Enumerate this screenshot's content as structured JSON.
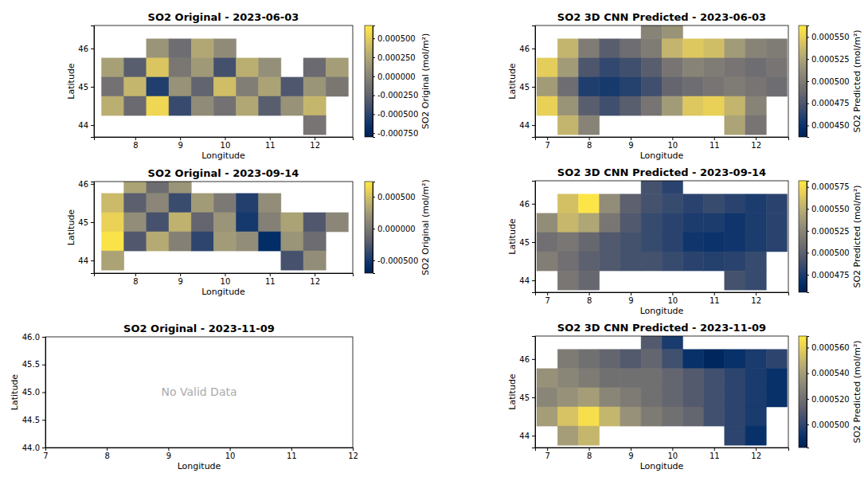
{
  "chart_data": [
    {
      "type": "heatmap",
      "title": "SO2 Original - 2023-06-03",
      "x_label": "Longitude",
      "y_label": "Latitude",
      "xlim": [
        7.08,
        12.85
      ],
      "ylim": [
        43.69,
        46.6
      ],
      "xticks": [
        8,
        9,
        10,
        11,
        12
      ],
      "yticks": [
        44,
        45,
        46
      ],
      "color": "cividis",
      "x": [
        7.0,
        7.5,
        8.0,
        8.5,
        9.0,
        9.5,
        10.0,
        10.5,
        11.0,
        11.5,
        12.0,
        12.5
      ],
      "y": [
        46.5,
        46.0,
        45.5,
        45.0,
        44.5,
        44.0
      ],
      "values": [
        [
          null,
          null,
          null,
          null,
          null,
          null,
          null,
          null,
          null,
          null,
          null,
          null
        ],
        [
          null,
          null,
          null,
          0.00012,
          -0.00018,
          0.00025,
          5e-05,
          null,
          null,
          null,
          null,
          null
        ],
        [
          null,
          0.0002,
          -0.0003,
          0.00045,
          -0.0001,
          0.00015,
          -0.0004,
          0.0003,
          8e-05,
          null,
          -0.0002,
          0.00018
        ],
        [
          null,
          -0.00015,
          0.00035,
          -0.00055,
          0.0001,
          -0.00025,
          0.0004,
          -5e-05,
          0.00022,
          -0.00035,
          0.00012,
          -0.0001
        ],
        [
          null,
          0.0003,
          -0.0002,
          0.00055,
          -0.00045,
          5e-05,
          -0.00015,
          0.00025,
          -0.0003,
          0.0001,
          0.00035,
          null
        ],
        [
          null,
          null,
          null,
          null,
          null,
          null,
          null,
          null,
          null,
          null,
          -0.00012,
          null
        ]
      ],
      "colorbar": {
        "label": "SO2 Original (mol/m²)",
        "range": [
          -0.0008,
          0.00067
        ],
        "ticks": [
          {
            "value": -0.00075,
            "label": "-0.000750"
          },
          {
            "value": -0.0005,
            "label": "-0.000500"
          },
          {
            "value": -0.00025,
            "label": "-0.000250"
          },
          {
            "value": 0,
            "label": "0.000000"
          },
          {
            "value": 0.00025,
            "label": "0.000250"
          },
          {
            "value": 0.0005,
            "label": "0.000500"
          }
        ]
      }
    },
    {
      "type": "heatmap",
      "title": "SO2 3D CNN Predicted - 2023-06-03",
      "x_label": "Longitude",
      "y_label": "Latitude",
      "xlim": [
        6.71,
        12.78
      ],
      "ylim": [
        43.69,
        46.6
      ],
      "xticks": [
        7,
        8,
        9,
        10,
        11,
        12
      ],
      "yticks": [
        44,
        45,
        46
      ],
      "color": "cividis",
      "x": [
        7.0,
        7.5,
        8.0,
        8.5,
        9.0,
        9.5,
        10.0,
        10.5,
        11.0,
        11.5,
        12.0,
        12.5
      ],
      "y": [
        46.5,
        46.0,
        45.5,
        45.0,
        44.5,
        44.0
      ],
      "values": [
        [
          null,
          null,
          null,
          null,
          null,
          0.000505,
          0.000515,
          null,
          null,
          null,
          null,
          null
        ],
        [
          null,
          0.000535,
          0.0005,
          0.00048,
          0.00049,
          0.0005,
          0.000535,
          0.000545,
          0.00054,
          0.00052,
          0.000505,
          0.0005
        ],
        [
          0.000548,
          0.00052,
          0.000475,
          0.000465,
          0.00047,
          0.00048,
          0.000495,
          0.000505,
          0.0005,
          0.000495,
          0.00049,
          0.000495
        ],
        [
          0.00052,
          0.00049,
          0.000458,
          0.000455,
          0.00046,
          0.00047,
          0.000485,
          0.00049,
          0.000495,
          0.0005,
          0.000495,
          0.00049
        ],
        [
          0.00055,
          0.000515,
          0.00048,
          0.00047,
          0.00048,
          0.000495,
          0.00052,
          0.000545,
          0.00055,
          0.000535,
          0.000505,
          null
        ],
        [
          null,
          0.000535,
          0.000505,
          null,
          null,
          null,
          null,
          null,
          null,
          0.000525,
          0.000495,
          null
        ]
      ],
      "colorbar": {
        "label": "SO2 Predicted (mol/m²)",
        "range": [
          0.000437,
          0.000563
        ],
        "ticks": [
          {
            "value": 0.00045,
            "label": "0.000450"
          },
          {
            "value": 0.000475,
            "label": "0.000475"
          },
          {
            "value": 0.0005,
            "label": "0.000500"
          },
          {
            "value": 0.000525,
            "label": "0.000525"
          },
          {
            "value": 0.00055,
            "label": "0.000550"
          }
        ]
      }
    },
    {
      "type": "heatmap",
      "title": "SO2 Original - 2023-09-14",
      "x_label": "Longitude",
      "y_label": "Latitude",
      "xlim": [
        7.08,
        12.85
      ],
      "ylim": [
        43.67,
        46.06
      ],
      "xticks": [
        8,
        9,
        10,
        11,
        12
      ],
      "yticks": [
        44,
        45,
        46
      ],
      "color": "cividis",
      "x": [
        7.0,
        7.5,
        8.0,
        8.5,
        9.0,
        9.5,
        10.0,
        10.5,
        11.0,
        11.5,
        12.0,
        12.5
      ],
      "y": [
        46.5,
        46.0,
        45.5,
        45.0,
        44.5,
        44.0
      ],
      "values": [
        [
          null,
          null,
          null,
          null,
          null,
          null,
          null,
          null,
          null,
          null,
          null,
          null
        ],
        [
          null,
          null,
          0.0003,
          -0.0001,
          0.0002,
          null,
          null,
          null,
          null,
          null,
          null,
          null
        ],
        [
          null,
          0.00045,
          -0.0002,
          0.0001,
          -0.00035,
          0.00025,
          0.0,
          -0.00045,
          0.00015,
          null,
          null,
          null
        ],
        [
          null,
          0.0006,
          0.00015,
          -0.0003,
          0.0004,
          -0.00015,
          0.0002,
          -0.0005,
          5e-05,
          0.0003,
          -0.00025,
          0.0001
        ],
        [
          null,
          0.0007,
          -0.00025,
          0.00035,
          5e-05,
          -0.0004,
          0.00025,
          0.00015,
          -0.0006,
          0.0002,
          -0.0001,
          null
        ],
        [
          null,
          0.0003,
          null,
          null,
          null,
          null,
          null,
          null,
          null,
          -0.0003,
          0.00015,
          null
        ]
      ],
      "colorbar": {
        "label": "SO2 Original (mol/m²)",
        "range": [
          -0.0007,
          0.00074
        ],
        "ticks": [
          {
            "value": -0.0005,
            "label": "-0.000500"
          },
          {
            "value": 0,
            "label": "0.000000"
          },
          {
            "value": 0.0005,
            "label": "0.000500"
          }
        ]
      }
    },
    {
      "type": "heatmap",
      "title": "SO2 3D CNN Predicted - 2023-09-14",
      "x_label": "Longitude",
      "y_label": "Latitude",
      "xlim": [
        6.71,
        12.78
      ],
      "ylim": [
        43.69,
        46.6
      ],
      "xticks": [
        7,
        8,
        9,
        10,
        11,
        12
      ],
      "yticks": [
        44,
        45,
        46
      ],
      "color": "cividis",
      "x": [
        7.0,
        7.5,
        8.0,
        8.5,
        9.0,
        9.5,
        10.0,
        10.5,
        11.0,
        11.5,
        12.0,
        12.5
      ],
      "y": [
        46.5,
        46.0,
        45.5,
        45.0,
        44.5,
        44.0
      ],
      "values": [
        [
          null,
          null,
          null,
          null,
          null,
          0.00049,
          0.00048,
          null,
          null,
          null,
          null,
          null
        ],
        [
          null,
          0.00056,
          0.00058,
          0.00053,
          0.0005,
          0.00049,
          0.000485,
          0.00048,
          0.000485,
          0.00048,
          0.000475,
          0.00048
        ],
        [
          0.00053,
          0.000555,
          0.000545,
          0.000515,
          0.000495,
          0.000485,
          0.00048,
          0.000475,
          0.000475,
          0.00047,
          0.000475,
          0.00048
        ],
        [
          0.00051,
          0.000515,
          0.000505,
          0.000495,
          0.00049,
          0.000485,
          0.00048,
          0.00047,
          0.000468,
          0.00047,
          0.000475,
          0.00048
        ],
        [
          0.00052,
          0.00051,
          0.0005,
          0.000495,
          0.00049,
          0.00049,
          0.000485,
          0.00048,
          0.000478,
          0.00048,
          0.000485,
          null
        ],
        [
          null,
          0.000515,
          0.000505,
          null,
          null,
          null,
          null,
          null,
          null,
          0.00049,
          0.000485,
          null
        ]
      ],
      "colorbar": {
        "label": "SO2 Predicted (mol/m²)",
        "range": [
          0.000455,
          0.000582
        ],
        "ticks": [
          {
            "value": 0.000475,
            "label": "0.000475"
          },
          {
            "value": 0.0005,
            "label": "0.000500"
          },
          {
            "value": 0.000525,
            "label": "0.000525"
          },
          {
            "value": 0.00055,
            "label": "0.000550"
          },
          {
            "value": 0.000575,
            "label": "0.000575"
          }
        ]
      }
    },
    {
      "type": "heatmap",
      "title": "SO2 Original - 2023-11-09",
      "x_label": "Longitude",
      "y_label": "Latitude",
      "xlim": [
        7,
        12
      ],
      "ylim": [
        44,
        46
      ],
      "xticks": [
        7,
        8,
        9,
        10,
        11,
        12
      ],
      "yticks": [
        {
          "value": 44,
          "label": "44.0"
        },
        44.5,
        {
          "value": 45,
          "label": "45.0"
        },
        45.5,
        {
          "value": 46,
          "label": "46.0"
        }
      ],
      "annotation": "No Valid Data"
    },
    {
      "type": "heatmap",
      "title": "SO2 3D CNN Predicted - 2023-11-09",
      "x_label": "Longitude",
      "y_label": "Latitude",
      "xlim": [
        6.71,
        12.78
      ],
      "ylim": [
        43.69,
        46.6
      ],
      "xticks": [
        7,
        8,
        9,
        10,
        11,
        12
      ],
      "yticks": [
        44,
        45,
        46
      ],
      "color": "cividis",
      "x": [
        7.0,
        7.5,
        8.0,
        8.5,
        9.0,
        9.5,
        10.0,
        10.5,
        11.0,
        11.5,
        12.0,
        12.5
      ],
      "y": [
        46.5,
        46.0,
        45.5,
        45.0,
        44.5,
        44.0
      ],
      "values": [
        [
          null,
          null,
          null,
          null,
          null,
          0.00051,
          0.000495,
          null,
          null,
          null,
          null,
          null
        ],
        [
          null,
          0.000525,
          0.00052,
          0.000515,
          0.00051,
          0.000515,
          0.000505,
          0.00049,
          0.000485,
          0.00049,
          0.000495,
          0.0005
        ],
        [
          0.000535,
          0.00053,
          0.000525,
          0.00052,
          0.00052,
          0.00052,
          0.000515,
          0.00051,
          0.000505,
          0.0005,
          0.000495,
          0.00049
        ],
        [
          0.00053,
          0.000535,
          0.00054,
          0.00053,
          0.000525,
          0.00052,
          0.000515,
          0.00051,
          0.000505,
          0.0005,
          0.000495,
          0.00049
        ],
        [
          0.00054,
          0.000555,
          0.000565,
          0.00055,
          0.000535,
          0.000525,
          0.00052,
          0.000515,
          0.000505,
          0.0005,
          0.000495,
          null
        ],
        [
          null,
          0.00054,
          0.00055,
          null,
          null,
          null,
          null,
          null,
          null,
          0.0005,
          0.00049,
          null
        ]
      ],
      "colorbar": {
        "label": "SO2 Predicted (mol/m²)",
        "range": [
          0.000482,
          0.000569
        ],
        "ticks": [
          {
            "value": 0.0005,
            "label": "0.000500"
          },
          {
            "value": 0.00052,
            "label": "0.000520"
          },
          {
            "value": 0.00054,
            "label": "0.000540"
          },
          {
            "value": 0.00056,
            "label": "0.000560"
          }
        ]
      }
    }
  ]
}
